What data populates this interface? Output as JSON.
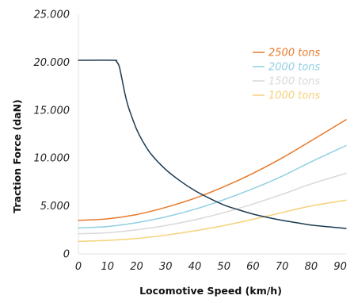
{
  "chart_data": {
    "type": "line",
    "title": "",
    "xlabel": "Locomotive Speed (km/h)",
    "ylabel": "Traction Force (daN)",
    "xlim": [
      0,
      92
    ],
    "ylim": [
      0,
      25000
    ],
    "x_ticks": [
      0,
      10,
      20,
      30,
      40,
      50,
      60,
      70,
      80,
      90
    ],
    "x_tick_labels": [
      "0",
      "10",
      "20",
      "30",
      "40",
      "50",
      "60",
      "70",
      "80",
      "90"
    ],
    "y_ticks": [
      0,
      5000,
      10000,
      15000,
      20000,
      25000
    ],
    "y_tick_labels": [
      "0",
      "5.000",
      "10.000",
      "15.000",
      "20.000",
      "25.000"
    ],
    "grid": false,
    "legend_position": "top-right",
    "traction_curve": {
      "name": "",
      "color": "#1b3a52",
      "x": [
        0,
        12,
        13,
        14,
        15,
        16,
        17,
        18,
        20,
        22,
        25,
        30,
        35,
        40,
        45,
        50,
        55,
        60,
        65,
        70,
        75,
        80,
        85,
        92
      ],
      "y": [
        20200,
        20200,
        20100,
        19600,
        18200,
        16700,
        15500,
        14600,
        13000,
        11800,
        10400,
        8800,
        7600,
        6600,
        5800,
        5100,
        4600,
        4150,
        3800,
        3500,
        3250,
        3000,
        2850,
        2650
      ]
    },
    "series": [
      {
        "name": "2500 tons",
        "color": "#e8792b",
        "x": [
          0,
          10,
          20,
          30,
          40,
          50,
          60,
          70,
          80,
          92
        ],
        "y": [
          3500,
          3650,
          4100,
          4850,
          5800,
          7000,
          8400,
          10000,
          11800,
          14000
        ]
      },
      {
        "name": "2000 tons",
        "color": "#92cfe3",
        "x": [
          0,
          10,
          20,
          30,
          40,
          50,
          60,
          70,
          80,
          92
        ],
        "y": [
          2700,
          2850,
          3250,
          3850,
          4650,
          5650,
          6800,
          8100,
          9600,
          11300
        ]
      },
      {
        "name": "1500 tons",
        "color": "#d9d9d9",
        "x": [
          0,
          10,
          20,
          30,
          40,
          50,
          60,
          70,
          80,
          92
        ],
        "y": [
          2100,
          2200,
          2500,
          2950,
          3550,
          4300,
          5200,
          6200,
          7300,
          8400
        ]
      },
      {
        "name": "1000 tons",
        "color": "#f5d27a",
        "x": [
          0,
          10,
          20,
          30,
          40,
          50,
          60,
          70,
          80,
          92
        ],
        "y": [
          1300,
          1400,
          1600,
          1950,
          2400,
          2950,
          3600,
          4300,
          5000,
          5600
        ]
      }
    ]
  }
}
